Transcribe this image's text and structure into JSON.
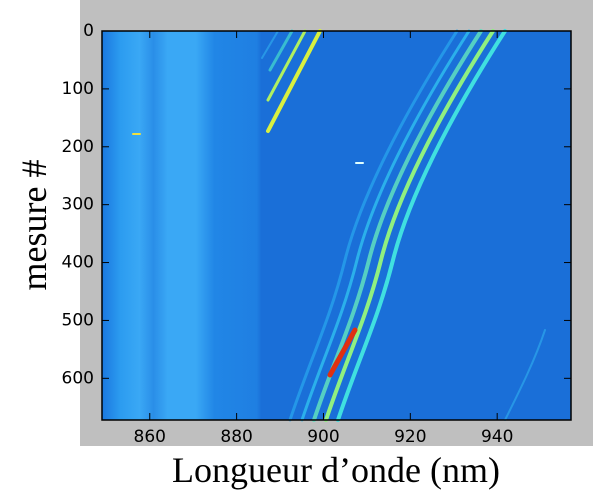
{
  "chart_data": {
    "type": "heatmap",
    "x_label": "Longueur d’onde (nm)",
    "y_label": "mesure #",
    "xlim": [
      849,
      957
    ],
    "xticks": [
      860,
      880,
      900,
      920,
      940
    ],
    "ylim": [
      0,
      672
    ],
    "y_inverted": true,
    "yticks": [
      0,
      100,
      200,
      300,
      400,
      500,
      600
    ]
  }
}
